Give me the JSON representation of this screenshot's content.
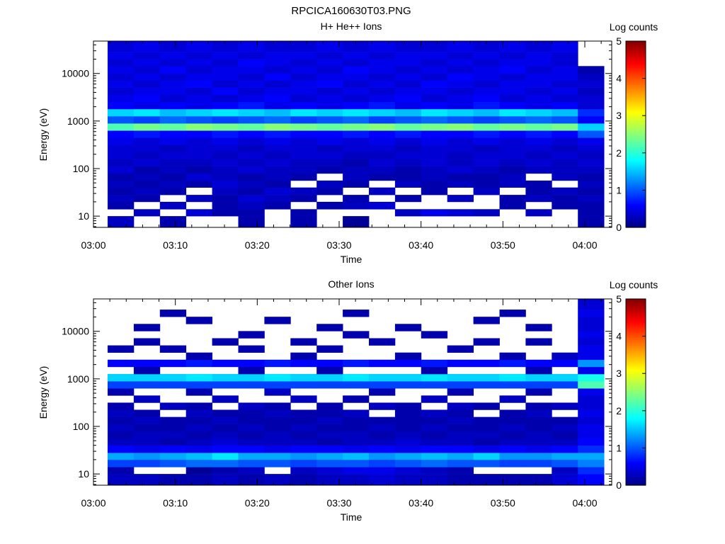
{
  "figure_title": "RPCICA160630T03.PNG",
  "chart_data": [
    {
      "type": "heatmap",
      "title": "H+ He++ Ions",
      "xlabel": "Time",
      "ylabel": "Energy (eV)",
      "y_scale": "log",
      "y_range": [
        5.8,
        48000
      ],
      "y_ticks": [
        10,
        100,
        1000,
        10000
      ],
      "y_tick_labels": [
        "10",
        "100",
        "1000",
        "10000"
      ],
      "x_ticks": [
        "03:00",
        "03:10",
        "03:20",
        "03:30",
        "03:40",
        "03:50",
        "04:00"
      ],
      "colorbar": {
        "label": "Log counts",
        "range": [
          0,
          5
        ],
        "ticks": [
          "0",
          "1",
          "2",
          "3",
          "4",
          "5"
        ]
      },
      "time_columns": [
        "03:01",
        "03:05",
        "03:08",
        "03:11",
        "03:14",
        "03:18",
        "03:21",
        "03:24",
        "03:28",
        "03:31",
        "03:34",
        "03:37",
        "03:41",
        "03:44",
        "03:47",
        "03:50",
        "03:54",
        "03:57",
        "04:00"
      ],
      "band_edges": [
        5.8,
        10,
        14,
        20,
        28,
        40,
        56,
        79,
        112,
        158,
        224,
        316,
        447,
        632,
        894,
        1265,
        1789,
        2530,
        3578,
        5060,
        7156,
        10120,
        14311,
        20239,
        28623,
        48000
      ],
      "values_log_counts": [
        [
          0.3,
          0.0,
          0.2,
          0.0,
          0.0,
          0.2,
          0.0,
          0.2,
          0.0,
          0.1,
          0.0,
          0.0,
          0.0,
          0.0,
          0.0,
          0.0,
          0.0,
          0.0,
          0.2
        ],
        [
          0.0,
          0.3,
          0.0,
          0.4,
          0.2,
          0.2,
          0.0,
          0.2,
          0.0,
          0.0,
          0.0,
          0.3,
          0.5,
          0.4,
          0.3,
          0.0,
          0.3,
          0.0,
          0.2
        ],
        [
          0.2,
          0.0,
          0.3,
          0.0,
          0.2,
          0.3,
          0.2,
          0.0,
          0.2,
          0.3,
          0.4,
          0.0,
          0.0,
          0.0,
          0.0,
          0.2,
          0.0,
          0.2,
          0.2
        ],
        [
          0.3,
          0.2,
          0.0,
          0.3,
          0.2,
          0.4,
          0.3,
          0.2,
          0.0,
          0.2,
          0.0,
          0.2,
          0.0,
          0.3,
          0.0,
          0.2,
          0.3,
          0.2,
          0.3
        ],
        [
          0.2,
          0.3,
          0.2,
          0.0,
          0.3,
          0.2,
          0.4,
          0.3,
          0.2,
          0.0,
          0.3,
          0.0,
          0.2,
          0.0,
          0.3,
          0.0,
          0.2,
          0.3,
          0.2
        ],
        [
          0.3,
          0.2,
          0.3,
          0.2,
          0.4,
          0.3,
          0.2,
          0.0,
          0.3,
          0.2,
          0.0,
          0.3,
          0.2,
          0.3,
          0.2,
          0.3,
          0.2,
          0.0,
          0.3
        ],
        [
          0.2,
          0.3,
          0.2,
          0.4,
          0.3,
          0.2,
          0.3,
          0.2,
          0.0,
          0.3,
          0.2,
          0.2,
          0.3,
          0.2,
          0.2,
          0.3,
          0.0,
          0.3,
          0.2
        ],
        [
          0.4,
          0.2,
          0.3,
          0.2,
          0.3,
          0.4,
          0.3,
          0.3,
          0.2,
          0.3,
          0.3,
          0.2,
          0.3,
          0.4,
          0.3,
          0.2,
          0.3,
          0.3,
          0.3
        ],
        [
          0.3,
          0.4,
          0.3,
          0.3,
          0.4,
          0.3,
          0.4,
          0.3,
          0.3,
          0.2,
          0.4,
          0.3,
          0.4,
          0.3,
          0.4,
          0.3,
          0.4,
          0.3,
          0.4
        ],
        [
          0.4,
          0.3,
          0.4,
          0.4,
          0.3,
          0.4,
          0.3,
          0.4,
          0.4,
          0.3,
          0.3,
          0.4,
          0.4,
          0.3,
          0.4,
          0.4,
          0.3,
          0.4,
          0.3
        ],
        [
          0.4,
          0.4,
          0.3,
          0.4,
          0.4,
          0.3,
          0.4,
          0.4,
          0.3,
          0.4,
          0.4,
          0.3,
          0.4,
          0.4,
          0.3,
          0.4,
          0.4,
          0.3,
          0.4
        ],
        [
          0.5,
          0.4,
          0.5,
          0.4,
          0.5,
          0.4,
          0.5,
          0.4,
          0.5,
          0.4,
          0.5,
          0.4,
          0.5,
          0.4,
          0.5,
          0.4,
          0.5,
          0.4,
          0.5
        ],
        [
          0.6,
          0.7,
          0.6,
          0.6,
          0.7,
          0.6,
          0.7,
          0.6,
          0.6,
          0.7,
          0.6,
          0.7,
          0.6,
          0.6,
          0.7,
          0.6,
          0.7,
          0.6,
          1.0
        ],
        [
          2.2,
          2.4,
          2.3,
          2.5,
          2.4,
          2.3,
          2.5,
          2.4,
          2.3,
          2.4,
          2.5,
          2.3,
          2.4,
          2.5,
          2.3,
          2.4,
          2.3,
          2.4,
          1.6
        ],
        [
          1.0,
          0.9,
          1.1,
          1.0,
          0.9,
          1.0,
          1.1,
          0.9,
          1.0,
          1.1,
          0.9,
          1.0,
          1.1,
          1.0,
          0.9,
          1.0,
          1.1,
          1.0,
          0.6
        ],
        [
          1.6,
          1.7,
          1.5,
          1.6,
          1.7,
          1.6,
          1.5,
          1.7,
          1.6,
          1.7,
          1.6,
          1.5,
          1.7,
          1.6,
          1.5,
          1.7,
          1.6,
          1.5,
          0.8
        ],
        [
          0.6,
          0.5,
          0.6,
          0.5,
          0.6,
          0.7,
          0.5,
          0.6,
          0.5,
          0.6,
          0.7,
          0.5,
          0.6,
          0.5,
          0.7,
          0.6,
          0.5,
          0.6,
          0.4
        ],
        [
          0.5,
          0.6,
          0.4,
          0.5,
          0.4,
          0.5,
          0.6,
          0.4,
          0.5,
          0.4,
          0.5,
          0.6,
          0.4,
          0.5,
          0.6,
          0.4,
          0.5,
          0.4,
          0.4
        ],
        [
          0.4,
          0.5,
          0.5,
          0.4,
          0.6,
          0.4,
          0.5,
          0.5,
          0.4,
          0.5,
          0.4,
          0.5,
          0.5,
          0.4,
          0.5,
          0.5,
          0.4,
          0.5,
          0.3
        ],
        [
          0.5,
          0.4,
          0.5,
          0.6,
          0.4,
          0.5,
          0.4,
          0.5,
          0.6,
          0.4,
          0.5,
          0.4,
          0.6,
          0.5,
          0.4,
          0.5,
          0.5,
          0.4,
          0.4
        ],
        [
          0.4,
          0.5,
          0.4,
          0.5,
          0.5,
          0.4,
          0.6,
          0.4,
          0.5,
          0.5,
          0.4,
          0.5,
          0.4,
          0.6,
          0.5,
          0.4,
          0.5,
          0.5,
          0.3
        ],
        [
          0.5,
          0.4,
          0.6,
          0.4,
          0.5,
          0.5,
          0.4,
          0.5,
          0.4,
          0.6,
          0.5,
          0.4,
          0.5,
          0.4,
          0.5,
          0.6,
          0.4,
          0.5,
          0.2
        ],
        [
          0.4,
          0.5,
          0.4,
          0.5,
          0.4,
          0.6,
          0.5,
          0.4,
          0.5,
          0.4,
          0.5,
          0.5,
          0.4,
          0.5,
          0.4,
          0.5,
          0.5,
          0.4,
          0.0
        ],
        [
          0.5,
          0.4,
          0.5,
          0.4,
          0.5,
          0.4,
          0.5,
          0.5,
          0.4,
          0.5,
          0.4,
          0.5,
          0.5,
          0.4,
          0.5,
          0.4,
          0.5,
          0.4,
          0.0
        ],
        [
          0.4,
          0.5,
          0.4,
          0.5,
          0.4,
          0.5,
          0.4,
          0.4,
          0.5,
          0.4,
          0.5,
          0.4,
          0.4,
          0.5,
          0.4,
          0.5,
          0.4,
          0.5,
          0.0
        ]
      ]
    },
    {
      "type": "heatmap",
      "title": "Other Ions",
      "xlabel": "Time",
      "ylabel": "Energy (eV)",
      "y_scale": "log",
      "y_range": [
        5.8,
        48000
      ],
      "y_ticks": [
        10,
        100,
        1000,
        10000
      ],
      "y_tick_labels": [
        "10",
        "100",
        "1000",
        "10000"
      ],
      "x_ticks": [
        "03:00",
        "03:10",
        "03:20",
        "03:30",
        "03:40",
        "03:50",
        "04:00"
      ],
      "colorbar": {
        "label": "Log counts",
        "range": [
          0,
          5
        ],
        "ticks": [
          "0",
          "1",
          "2",
          "3",
          "4",
          "5"
        ]
      },
      "time_columns": [
        "03:01",
        "03:05",
        "03:08",
        "03:11",
        "03:14",
        "03:18",
        "03:21",
        "03:24",
        "03:28",
        "03:31",
        "03:34",
        "03:37",
        "03:41",
        "03:44",
        "03:47",
        "03:50",
        "03:54",
        "03:57",
        "04:00"
      ],
      "band_edges": [
        5.8,
        10,
        14,
        20,
        28,
        40,
        56,
        79,
        112,
        158,
        224,
        316,
        447,
        632,
        894,
        1265,
        1789,
        2530,
        3578,
        5060,
        7156,
        10120,
        14311,
        20239,
        28623,
        48000
      ],
      "values_log_counts": [
        [
          0.3,
          0.3,
          0.2,
          0.2,
          0.3,
          0.2,
          0.3,
          0.2,
          0.3,
          0.3,
          0.4,
          0.3,
          0.3,
          0.2,
          0.2,
          0.2,
          0.2,
          0.4,
          0.6
        ],
        [
          0.2,
          0.0,
          0.0,
          0.1,
          0.2,
          0.3,
          0.0,
          0.3,
          0.4,
          0.5,
          0.5,
          0.4,
          0.3,
          0.2,
          0.0,
          0.0,
          0.0,
          0.3,
          0.8
        ],
        [
          0.9,
          0.9,
          1.0,
          1.1,
          1.1,
          1.0,
          1.0,
          0.9,
          1.0,
          1.0,
          0.9,
          1.0,
          1.1,
          1.0,
          1.0,
          0.9,
          0.9,
          1.0,
          1.2
        ],
        [
          1.4,
          1.3,
          1.4,
          1.5,
          1.7,
          1.4,
          1.4,
          1.3,
          1.4,
          1.5,
          1.3,
          1.4,
          1.5,
          1.4,
          1.6,
          1.3,
          1.3,
          1.4,
          1.4
        ],
        [
          0.6,
          0.5,
          0.6,
          0.5,
          0.6,
          0.6,
          0.5,
          0.6,
          0.6,
          0.5,
          0.6,
          0.5,
          0.6,
          0.6,
          0.5,
          0.6,
          0.5,
          0.6,
          0.8
        ],
        [
          0.3,
          0.3,
          0.2,
          0.3,
          0.4,
          0.3,
          0.3,
          0.3,
          0.2,
          0.3,
          0.3,
          0.4,
          0.3,
          0.3,
          0.2,
          0.3,
          0.3,
          0.3,
          0.6
        ],
        [
          0.2,
          0.3,
          0.3,
          0.2,
          0.3,
          0.2,
          0.3,
          0.2,
          0.3,
          0.3,
          0.2,
          0.3,
          0.2,
          0.3,
          0.3,
          0.2,
          0.3,
          0.2,
          0.5
        ],
        [
          0.3,
          0.2,
          0.2,
          0.3,
          0.2,
          0.3,
          0.2,
          0.3,
          0.2,
          0.2,
          0.3,
          0.2,
          0.3,
          0.2,
          0.2,
          0.3,
          0.2,
          0.3,
          0.5
        ],
        [
          0.2,
          0.3,
          0.2,
          0.2,
          0.3,
          0.2,
          0.2,
          0.2,
          0.3,
          0.2,
          0.2,
          0.2,
          0.2,
          0.3,
          0.2,
          0.2,
          0.2,
          0.2,
          0.4
        ],
        [
          0.3,
          0.2,
          0.0,
          0.3,
          0.2,
          0.2,
          0.3,
          0.2,
          0.2,
          0.3,
          0.0,
          0.2,
          0.3,
          0.2,
          0.0,
          0.2,
          0.3,
          0.0,
          0.5
        ],
        [
          0.2,
          0.0,
          0.3,
          0.2,
          0.0,
          0.3,
          0.2,
          0.0,
          0.2,
          0.0,
          0.3,
          0.2,
          0.0,
          0.3,
          0.2,
          0.0,
          0.2,
          0.3,
          0.4
        ],
        [
          0.0,
          0.3,
          0.0,
          0.0,
          0.3,
          0.0,
          0.0,
          0.3,
          0.0,
          0.2,
          0.0,
          0.0,
          0.3,
          0.0,
          0.0,
          0.3,
          0.0,
          0.0,
          0.4
        ],
        [
          0.2,
          0.0,
          0.0,
          0.2,
          0.0,
          0.0,
          0.3,
          0.0,
          0.0,
          0.0,
          0.2,
          0.0,
          0.0,
          0.2,
          0.0,
          0.0,
          0.2,
          0.0,
          0.5
        ],
        [
          0.9,
          0.9,
          0.9,
          0.9,
          0.9,
          0.9,
          0.9,
          0.9,
          0.9,
          0.9,
          0.9,
          0.9,
          0.9,
          0.9,
          0.9,
          0.9,
          0.9,
          0.9,
          2.2
        ],
        [
          1.6,
          1.6,
          1.6,
          1.7,
          1.6,
          1.6,
          1.7,
          1.6,
          1.6,
          1.7,
          1.6,
          1.6,
          1.7,
          1.6,
          1.6,
          1.7,
          1.6,
          1.6,
          1.9
        ],
        [
          0.0,
          0.2,
          0.0,
          0.0,
          0.0,
          0.2,
          0.0,
          0.0,
          0.2,
          0.0,
          0.0,
          0.0,
          0.2,
          0.0,
          0.0,
          0.0,
          0.2,
          0.0,
          0.5
        ],
        [
          0.6,
          0.6,
          0.6,
          0.7,
          0.6,
          0.6,
          0.7,
          0.6,
          0.6,
          0.7,
          0.6,
          0.6,
          0.7,
          0.6,
          0.6,
          0.7,
          0.6,
          0.6,
          1.3
        ],
        [
          0.0,
          0.0,
          0.0,
          0.2,
          0.0,
          0.0,
          0.0,
          0.2,
          0.0,
          0.0,
          0.0,
          0.2,
          0.0,
          0.0,
          0.0,
          0.2,
          0.0,
          0.3,
          0.5
        ],
        [
          0.2,
          0.0,
          0.2,
          0.0,
          0.0,
          0.2,
          0.0,
          0.0,
          0.2,
          0.0,
          0.0,
          0.0,
          0.0,
          0.2,
          0.0,
          0.0,
          0.0,
          0.0,
          0.5
        ],
        [
          0.0,
          0.2,
          0.0,
          0.0,
          0.2,
          0.0,
          0.0,
          0.2,
          0.0,
          0.0,
          0.2,
          0.0,
          0.0,
          0.0,
          0.2,
          0.0,
          0.2,
          0.0,
          0.4
        ],
        [
          0.0,
          0.0,
          0.0,
          0.0,
          0.0,
          0.2,
          0.0,
          0.0,
          0.0,
          0.2,
          0.0,
          0.0,
          0.2,
          0.0,
          0.0,
          0.0,
          0.0,
          0.0,
          0.5
        ],
        [
          0.0,
          0.2,
          0.0,
          0.0,
          0.0,
          0.0,
          0.0,
          0.0,
          0.2,
          0.0,
          0.0,
          0.2,
          0.0,
          0.0,
          0.0,
          0.0,
          0.2,
          0.0,
          0.4
        ],
        [
          0.0,
          0.0,
          0.0,
          0.2,
          0.0,
          0.0,
          0.2,
          0.0,
          0.0,
          0.0,
          0.0,
          0.0,
          0.0,
          0.0,
          0.2,
          0.0,
          0.0,
          0.0,
          0.4
        ],
        [
          0.0,
          0.0,
          0.2,
          0.0,
          0.0,
          0.0,
          0.0,
          0.0,
          0.0,
          0.2,
          0.0,
          0.0,
          0.0,
          0.0,
          0.0,
          0.2,
          0.0,
          0.0,
          0.5
        ],
        [
          0.0,
          0.0,
          0.0,
          0.0,
          0.0,
          0.0,
          0.0,
          0.0,
          0.0,
          0.0,
          0.0,
          0.0,
          0.0,
          0.0,
          0.0,
          0.0,
          0.0,
          0.0,
          0.4
        ]
      ]
    }
  ]
}
